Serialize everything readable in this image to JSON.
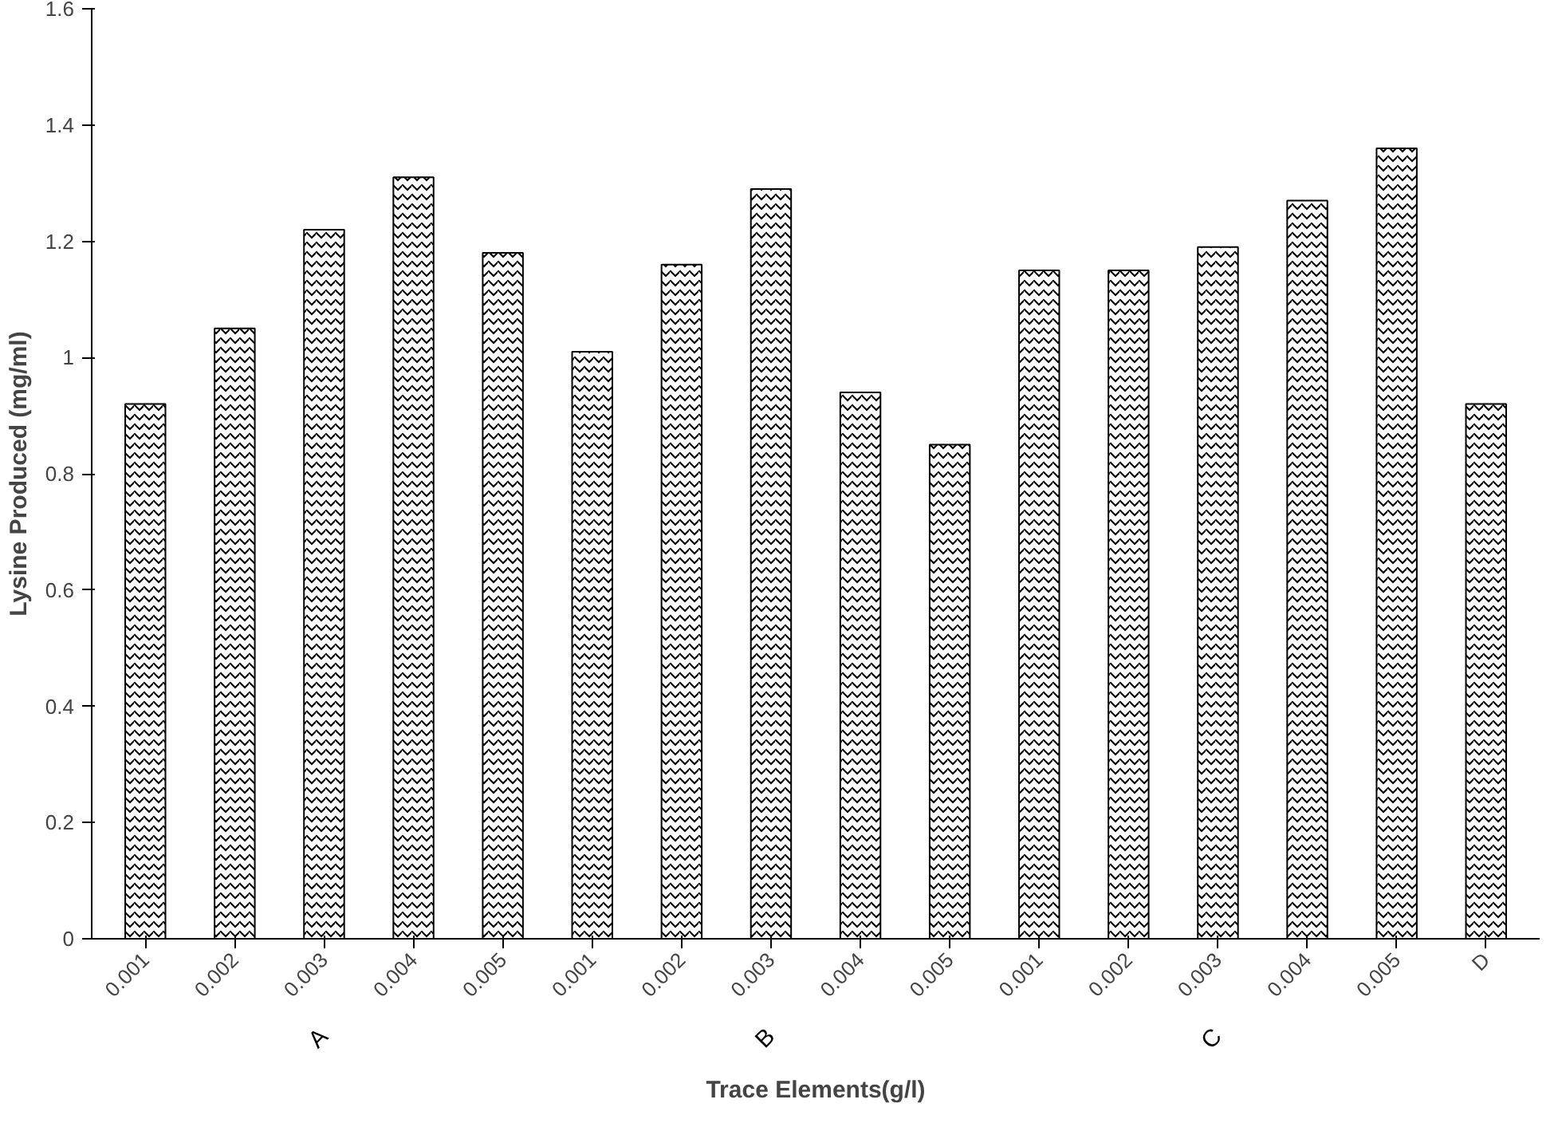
{
  "chart_data": {
    "type": "bar",
    "xlabel": "Trace Elements(g/l)",
    "ylabel": "Lysine Produced (mg/ml)",
    "categories": [
      "0.001",
      "0.002",
      "0.003",
      "0.004",
      "0.005",
      "0.001",
      "0.002",
      "0.003",
      "0.004",
      "0.005",
      "0.001",
      "0.002",
      "0.003",
      "0.004",
      "0.005",
      "D"
    ],
    "values": [
      0.92,
      1.05,
      1.22,
      1.31,
      1.18,
      1.01,
      1.16,
      1.29,
      0.94,
      0.85,
      1.15,
      1.15,
      1.19,
      1.27,
      1.36,
      0.92
    ],
    "color": "#000000",
    "annotations": [
      "A",
      "B",
      "C"
    ],
    "ylim": [
      0,
      1.6
    ],
    "yticks": [
      0,
      0.2,
      0.4,
      0.6,
      0.8,
      1,
      1.2,
      1.4,
      1.6
    ],
    "grid": false
  }
}
